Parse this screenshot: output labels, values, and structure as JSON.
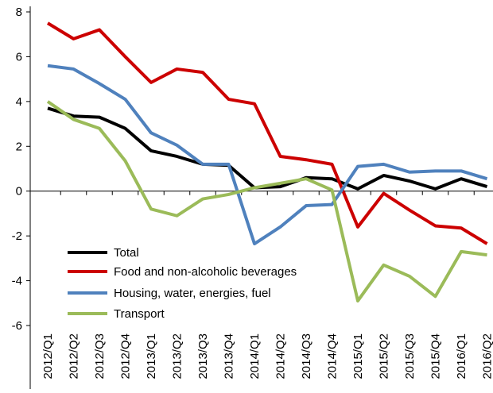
{
  "chart_data": {
    "type": "line",
    "categories": [
      "2012/Q1",
      "2012/Q2",
      "2012/Q3",
      "2012/Q4",
      "2013/Q1",
      "2013/Q2",
      "2013/Q3",
      "2013/Q4",
      "2014/Q1",
      "2014/Q2",
      "2014/Q3",
      "2014/Q4",
      "2015/Q1",
      "2015/Q2",
      "2015/Q3",
      "2015/Q4",
      "2016/Q1",
      "2016/Q2"
    ],
    "series": [
      {
        "name": "Total",
        "color": "#000000",
        "values": [
          3.7,
          3.35,
          3.3,
          2.8,
          1.8,
          1.55,
          1.2,
          1.15,
          0.15,
          0.2,
          0.6,
          0.55,
          0.1,
          0.7,
          0.45,
          0.1,
          0.55,
          0.2
        ]
      },
      {
        "name": "Food and non-alcoholic beverages",
        "color": "#cc0000",
        "values": [
          7.5,
          6.8,
          7.2,
          6.0,
          4.85,
          5.45,
          5.3,
          4.1,
          3.9,
          1.55,
          1.4,
          1.2,
          -1.6,
          -0.1,
          -0.85,
          -1.55,
          -1.65,
          -2.35
        ]
      },
      {
        "name": "Housing, water, energies, fuel",
        "color": "#4f81bd",
        "values": [
          5.6,
          5.45,
          4.8,
          4.1,
          2.6,
          2.05,
          1.2,
          1.2,
          -2.35,
          -1.6,
          -0.65,
          -0.6,
          1.1,
          1.2,
          0.85,
          0.9,
          0.9,
          0.55
        ]
      },
      {
        "name": "Transport",
        "color": "#9bbb59",
        "values": [
          4.0,
          3.2,
          2.8,
          1.35,
          -0.8,
          -1.1,
          -0.35,
          -0.15,
          0.15,
          0.35,
          0.55,
          0.05,
          -4.9,
          -3.3,
          -3.8,
          -4.7,
          -2.7,
          -2.85
        ]
      }
    ],
    "ylim": [
      -6,
      8
    ],
    "yticks": [
      -6,
      -4,
      -2,
      0,
      2,
      4,
      6,
      8
    ],
    "legend": "lower-left"
  }
}
